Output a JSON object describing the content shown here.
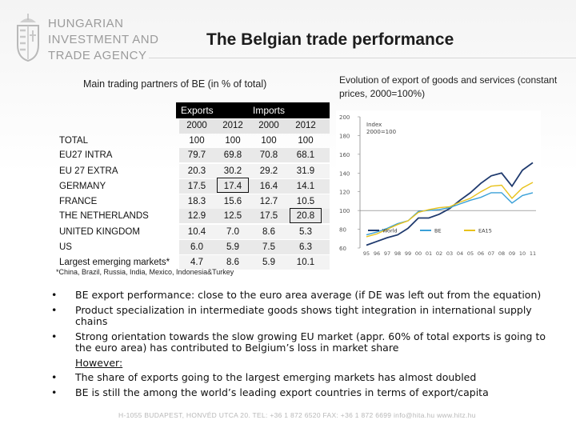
{
  "logo": {
    "line1": "HUNGARIAN",
    "line2": "INVESTMENT AND",
    "line3": "TRADE AGENCY"
  },
  "title": "The Belgian trade performance",
  "left_subtitle": "Main trading partners of BE (in % of total)",
  "right_subtitle": "Evolution of export of goods and services (constant prices, 2000=100%)",
  "table": {
    "group_exports": "Exports",
    "group_imports": "Imports",
    "years": [
      "2000",
      "2012",
      "2000",
      "2012"
    ],
    "rows": [
      {
        "label": "TOTAL",
        "v": [
          "100",
          "100",
          "100",
          "100"
        ]
      },
      {
        "label": "EU27 INTRA",
        "v": [
          "79.7",
          "69.8",
          "70.8",
          "68.1"
        ]
      },
      {
        "label": "EU 27 EXTRA",
        "v": [
          "20.3",
          "30.2",
          "29.2",
          "31.9"
        ]
      },
      {
        "label": "GERMANY",
        "v": [
          "17.5",
          "17.4",
          "16.4",
          "14.1"
        ]
      },
      {
        "label": "FRANCE",
        "v": [
          "18.3",
          "15.6",
          "12.7",
          "10.5"
        ]
      },
      {
        "label": "THE NETHERLANDS",
        "v": [
          "12.9",
          "12.5",
          "17.5",
          "20.8"
        ]
      },
      {
        "label": "UNITED KINGDOM",
        "v": [
          "10.4",
          "7.0",
          "8.6",
          "5.3"
        ]
      },
      {
        "label": "US",
        "v": [
          "6.0",
          "5.9",
          "7.5",
          "6.3"
        ]
      },
      {
        "label": "Largest emerging markets*",
        "v": [
          "4.7",
          "8.6",
          "5.9",
          "10.1"
        ]
      }
    ]
  },
  "footnote": "*China, Brazil, Russia, India, Mexico, Indonesia&Turkey",
  "chart_data": {
    "type": "line",
    "title": "",
    "inner_label": "Index 2000=100",
    "x": [
      "95",
      "96",
      "97",
      "98",
      "99",
      "00",
      "01",
      "02",
      "03",
      "04",
      "05",
      "06",
      "07",
      "08",
      "09",
      "10",
      "11"
    ],
    "ylim": [
      60,
      200
    ],
    "yticks": [
      60,
      80,
      100,
      120,
      140,
      160,
      180,
      200
    ],
    "series": [
      {
        "name": "World",
        "color": "#1f3a6e",
        "values": [
          63,
          67,
          71,
          74,
          81,
          92,
          92,
          96,
          102,
          111,
          119,
          129,
          137,
          140,
          126,
          143,
          151
        ]
      },
      {
        "name": "BE",
        "color": "#3aa0d8",
        "values": [
          74,
          77,
          81,
          86,
          89,
          99,
          100,
          101,
          103,
          107,
          111,
          114,
          119,
          119,
          108,
          116,
          119
        ]
      },
      {
        "name": "EA15",
        "color": "#e8c21c",
        "values": [
          72,
          75,
          80,
          85,
          89,
          98,
          101,
          103,
          104,
          109,
          113,
          120,
          126,
          127,
          113,
          124,
          130
        ]
      }
    ]
  },
  "bullets": [
    {
      "text": "BE export performance: close to the euro area average (if DE was left out from the equation)",
      "dot": "•"
    },
    {
      "text": "Product specialization in intermediate goods shows tight integration in international supply chains",
      "dot": "•"
    },
    {
      "text": "Strong orientation towards the slow growing EU market (appr. 60% of total exports is going to the euro area) has contributed to Belgium’s loss in market share",
      "dot": "•"
    },
    {
      "text": "However:",
      "dot": ""
    },
    {
      "text": "The share of exports going to the largest emerging markets has almost doubled",
      "dot": "•"
    },
    {
      "text": "BE is still the among the world’s leading export countries in terms of export/capita",
      "dot": "•"
    }
  ],
  "footer": "H-1055 BUDAPEST, HONVÉD UTCA 20. TEL: +36 1 872 6520  FAX: +36 1 872 6699  info@hita.hu  www.hitz.hu"
}
